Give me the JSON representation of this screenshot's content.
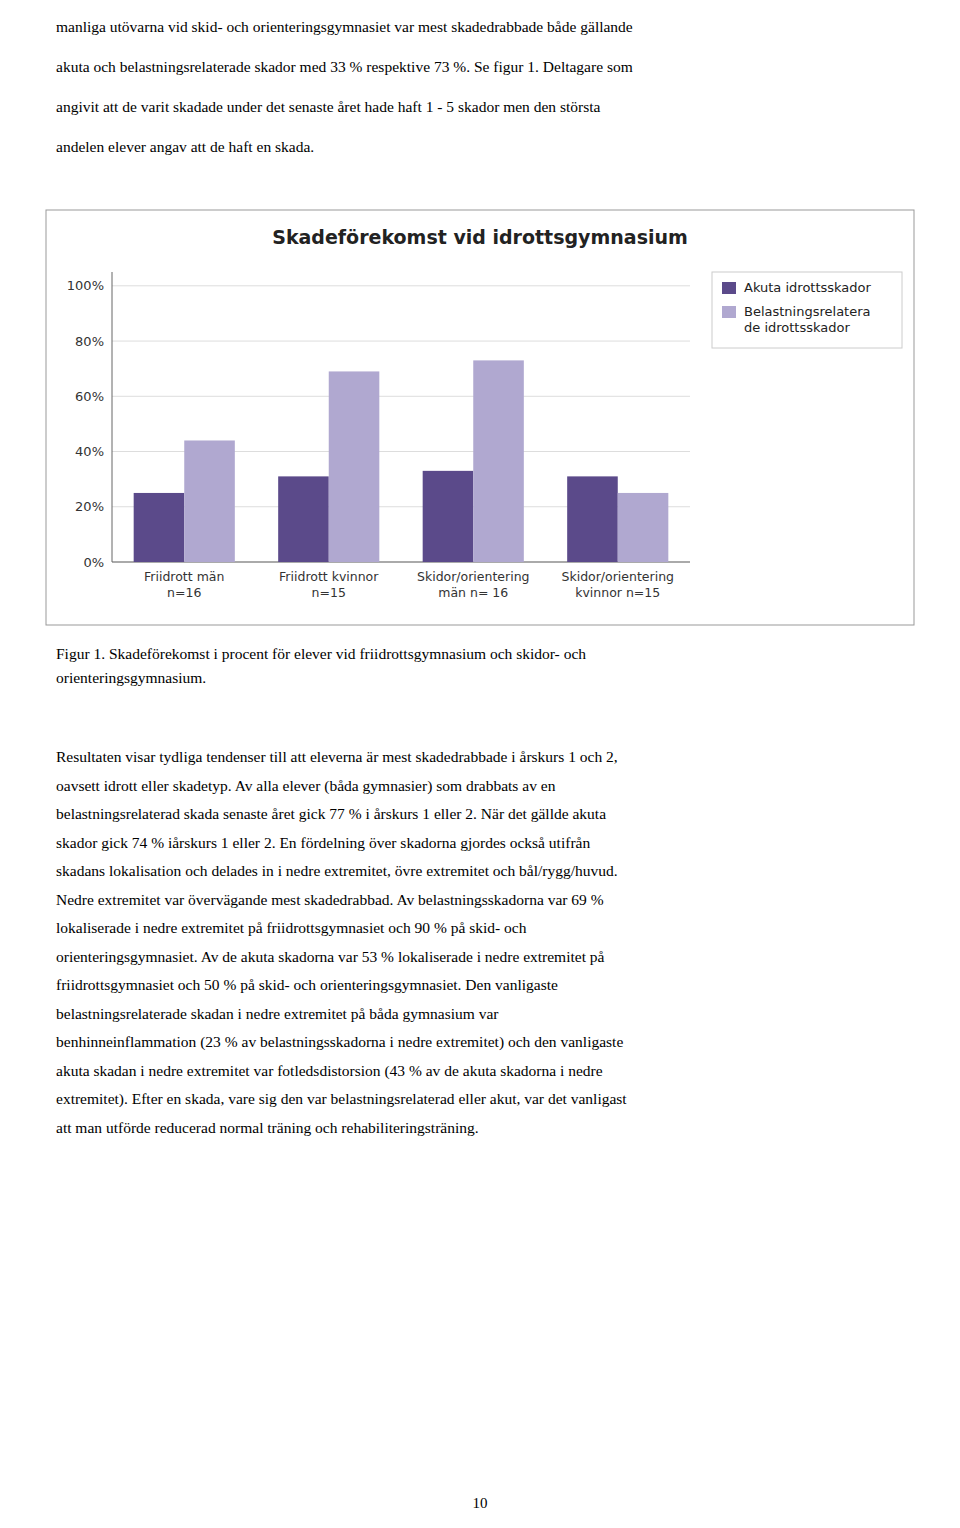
{
  "chart_data": {
    "type": "bar",
    "title": "Skadeförekomst vid idrottsgymnasium",
    "categories": [
      "Friidrott män\nn=16",
      "Friidrott kvinnor\nn=15",
      "Skidor/orientering\nmän n= 16",
      "Skidor/orientering\nkvinnor n=15"
    ],
    "series": [
      {
        "name": "Akuta idrottsskador",
        "color": "#5b4a8a",
        "values": [
          0.25,
          0.31,
          0.33,
          0.31
        ]
      },
      {
        "name": "Belastningsrelatera\nde idrottsskador",
        "color": "#b0a8d0",
        "values": [
          0.44,
          0.69,
          0.73,
          0.25
        ]
      }
    ],
    "ylim": [
      0,
      1.05
    ],
    "yticks": [
      {
        "value": 0.0,
        "label": "0%"
      },
      {
        "value": 0.2,
        "label": "20%"
      },
      {
        "value": 0.4,
        "label": "40%"
      },
      {
        "value": 0.6,
        "label": "60%"
      },
      {
        "value": 0.8,
        "label": "80%"
      },
      {
        "value": 1.0,
        "label": "100%"
      }
    ],
    "grid": true,
    "legend": "upper right"
  },
  "text_above": [
    "manliga utövarna vid skid- och orienteringsgymnasiet var mest skadedrabbade både gällande",
    "akuta och belastningsrelaterade skador med 33 % respektive 73 %. Se figur 1. Deltagare  som",
    "angivit att de varit skadade under det senaste året hade  haft 1 - 5 skador men den största",
    "andelen elever angav att de haft en skada."
  ],
  "fig_caption": "Figur 1. Skadeförekomst i procent för elever vid friidrottsgymnasium och skidor- och\norienteringsgymnasium.",
  "body_text": [
    "Resultaten visar tydliga tendenser till att eleverna är mest skadedrabbade i årskurs 1 och 2,",
    "oavsett idrott eller skadetyp. Av alla elever (båda gymnasier) som drabbats av en",
    "belastningsrelaterad skada senaste året gick 77 % i årskurs 1 eller 2. När det gällde akuta",
    "skador gick 74 % iårskurs 1 eller 2. En fördelning över skadorna gjordes också utifrån",
    "skadans lokalisation och delades in i nedre extremitet, övre extremitet och bål/rygg/huvud.",
    "Nedre extremitet var övervägande mest skadedrabbad. Av belastningsskadorna var 69 %",
    "lokaliserade i nedre extremitet på friidrottsgymnasiet och 90 % på skid- och",
    "orienteringsgymnasiet. Av de akuta skadorna var 53 % lokaliserade i nedre extremitet på",
    "friidrottsgymnasiet och 50 % på skid- och orienteringsgymnasiet. Den vanligaste",
    "belastningsrelaterade skadan i nedre extremitet på båda gymnasium var",
    "benhinneinflammation (23 % av belastningsskadorna i nedre extremitet) och den vanligaste",
    "akuta skadan i nedre extremitet var fotledsdistorsion (43 % av de akuta skadorna i nedre",
    "extremitet). Efter en skada, vare sig den var belastningsrelaterad eller akut, var det vanligast",
    "att man utförde reducerad normal träning och rehabiliteringsträning."
  ],
  "page_number": "10"
}
